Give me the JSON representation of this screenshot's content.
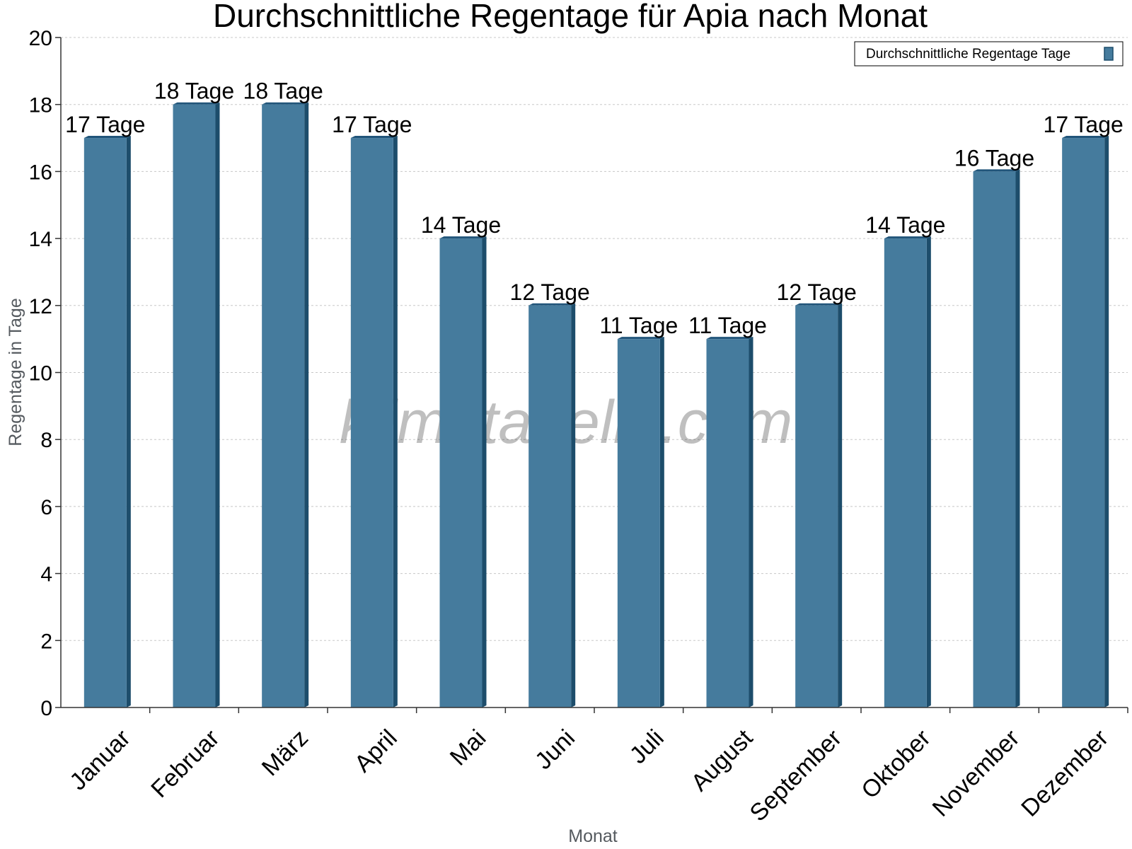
{
  "chart_data": {
    "type": "bar",
    "title": "Durchschnittliche Regentage für Apia nach Monat",
    "xlabel": "Monat",
    "ylabel": "Regentage in Tage",
    "ylim": [
      0,
      20
    ],
    "yticks": [
      0,
      2,
      4,
      6,
      8,
      10,
      12,
      14,
      16,
      18,
      20
    ],
    "grid": true,
    "legend_position": "top-right",
    "categories": [
      "Januar",
      "Februar",
      "März",
      "April",
      "Mai",
      "Juni",
      "Juli",
      "August",
      "September",
      "Oktober",
      "November",
      "Dezember"
    ],
    "series": [
      {
        "name": "Durchschnittliche Regentage Tage",
        "values": [
          17,
          18,
          18,
          17,
          14,
          12,
          11,
          11,
          12,
          14,
          16,
          17
        ],
        "data_labels": [
          "17 Tage",
          "18 Tage",
          "18 Tage",
          "17 Tage",
          "14 Tage",
          "12 Tage",
          "11 Tage",
          "11 Tage",
          "12 Tage",
          "14 Tage",
          "16 Tage",
          "17 Tage"
        ],
        "color": "#457b9d"
      }
    ]
  },
  "watermark": "klimatabelle.com",
  "colors": {
    "bar_front": "#457b9d",
    "bar_side": "#1d4d6b",
    "bar_top": "#21557a",
    "grid": "#c8c8c8",
    "axis": "#333333"
  }
}
